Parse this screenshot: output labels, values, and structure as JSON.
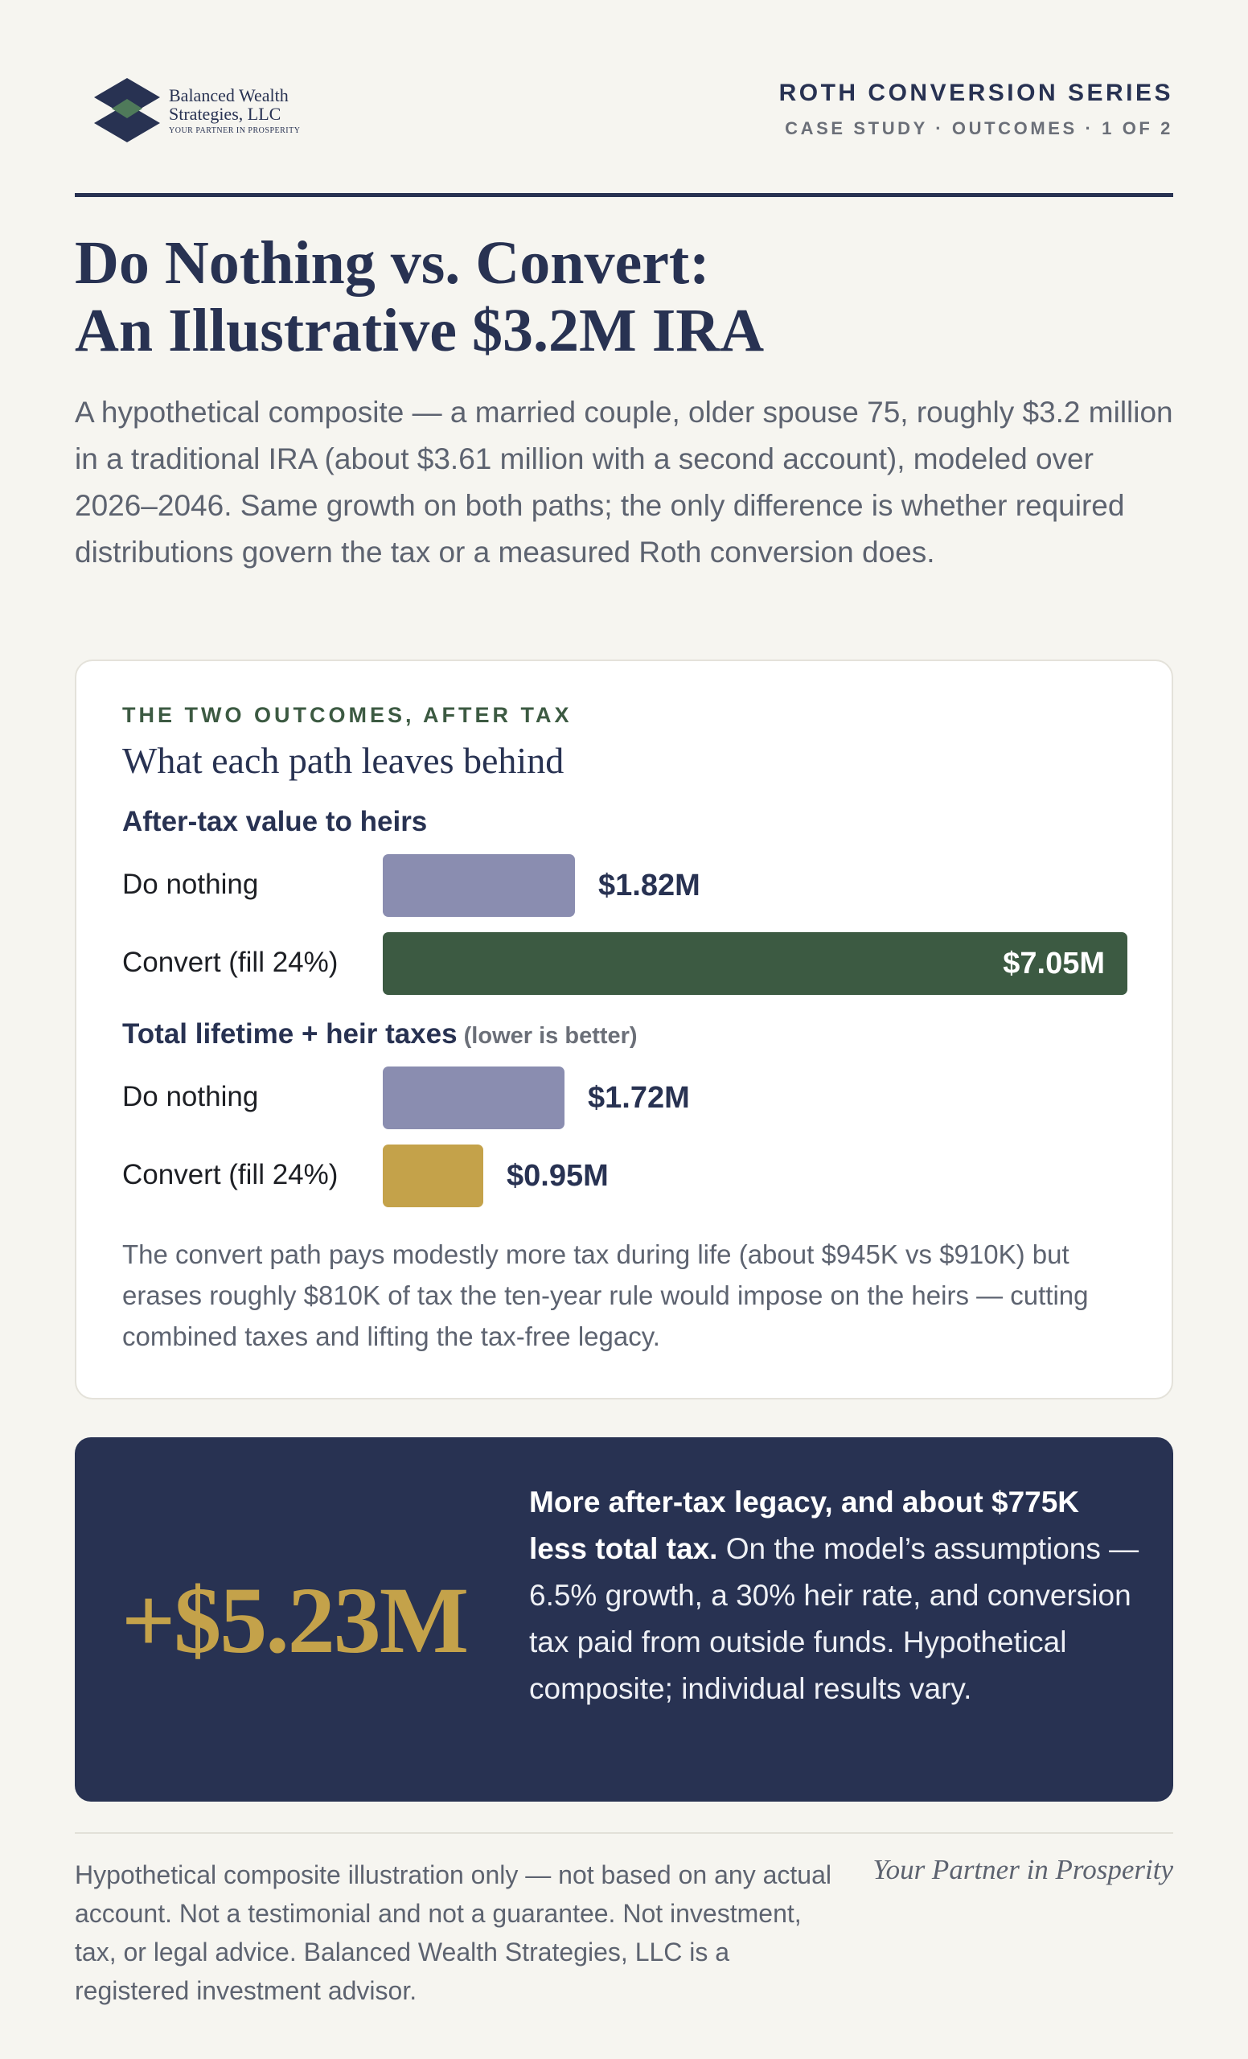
{
  "brand": {
    "logo_icon": "stacked-diamond-logo-icon",
    "name_line1": "Balanced Wealth",
    "name_line2": "Strategies, LLC",
    "tagline_small": "YOUR PARTNER IN PROSPERITY",
    "colors": {
      "navy": "#283252",
      "green": "#3c5a42",
      "gold": "#c4a24a",
      "lavender": "#8a8db0"
    }
  },
  "header": {
    "series_title": "ROTH CONVERSION SERIES",
    "series_sub": "CASE STUDY · OUTCOMES · 1 OF 2"
  },
  "title": {
    "line1": "Do Nothing vs. Convert:",
    "line2": "An Illustrative $3.2M IRA"
  },
  "intro": "A hypothetical composite — a married couple, older spouse 75, roughly $3.2 million in a traditional IRA (about $3.61 million with a second account), modeled over 2026–2046. Same growth on both paths; the only difference is whether required distributions govern the tax or a measured Roth conversion does.",
  "card": {
    "eyebrow": "THE TWO OUTCOMES, AFTER TAX",
    "title": "What each path leaves behind",
    "footnote": "The convert path pays modestly more tax during life (about $945K vs $910K) but erases roughly $810K of tax the ten-year rule would impose on the heirs — cutting combined taxes and lifting the tax-free legacy."
  },
  "chart_data": [
    {
      "type": "bar",
      "orientation": "horizontal",
      "title": "After-tax value to heirs",
      "note": "",
      "categories": [
        "Do nothing",
        "Convert (fill 24%)"
      ],
      "values": [
        1.82,
        7.05
      ],
      "value_labels": [
        "$1.82M",
        "$7.05M"
      ],
      "unit": "$M",
      "colors": [
        "#8a8db0",
        "#3c5a42"
      ]
    },
    {
      "type": "bar",
      "orientation": "horizontal",
      "title": "Total lifetime + heir taxes",
      "note": "(lower is better)",
      "categories": [
        "Do nothing",
        "Convert (fill 24%)"
      ],
      "values": [
        1.72,
        0.95
      ],
      "value_labels": [
        "$1.72M",
        "$0.95M"
      ],
      "unit": "$M",
      "colors": [
        "#8a8db0",
        "#c4a24a"
      ]
    }
  ],
  "callout": {
    "big_number": "+$5.23M",
    "bold_text": "More after-tax legacy, and about $775K less total tax.",
    "body_text": " On the model’s assumptions — 6.5% growth, a 30% heir rate, and conversion tax paid from outside funds. Hypothetical composite; individual results vary."
  },
  "footer": {
    "disclaimer": "Hypothetical composite illustration only — not based on any actual account. Not a testimonial and not a guarantee. Not investment, tax, or legal advice. Balanced Wealth Strategies, LLC is a registered investment advisor.",
    "tagline": "Your Partner in Prosperity"
  }
}
